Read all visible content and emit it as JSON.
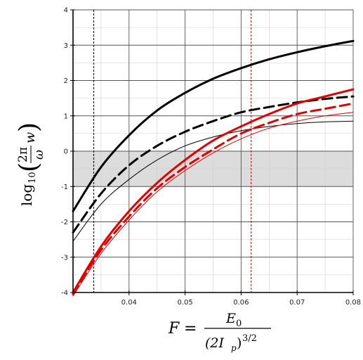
{
  "chart_data": {
    "type": "line",
    "title": "",
    "xlim": [
      0.03,
      0.08
    ],
    "ylim": [
      -4,
      4
    ],
    "x_ticks": [
      "0.04",
      "0.05",
      "0.06",
      "0.07",
      "0.08"
    ],
    "y_ticks": [
      "-4",
      "-3",
      "-2",
      "-1",
      "0",
      "1",
      "2",
      "3",
      "4"
    ],
    "xlabel": {
      "lhs": "F",
      "eq": "=",
      "numerator": "E",
      "numerator_sub": "0",
      "denominator": "(2I",
      "denominator_sub": "p",
      "denominator_close": ")",
      "denominator_exp": "3/2"
    },
    "ylabel": {
      "func": "log",
      "func_sub": "10",
      "open": "(",
      "numerator": "2π",
      "denominator": "ω",
      "factor": "w",
      "close": ")"
    },
    "grid": true,
    "shaded_band": {
      "y_from": -1,
      "y_to": 0,
      "color": "#dcdcdc"
    },
    "vertical_markers": [
      {
        "x": 0.0337,
        "color": "#000000",
        "style": "dashed"
      },
      {
        "x": 0.0618,
        "color": "#e00000",
        "style": "dashed"
      }
    ],
    "series": [
      {
        "color": "#000000",
        "style": "solid",
        "width": 3,
        "x": [
          0.03,
          0.035,
          0.04,
          0.045,
          0.05,
          0.055,
          0.06,
          0.065,
          0.07,
          0.075,
          0.08
        ],
        "y": [
          -1.7,
          -0.45,
          0.45,
          1.15,
          1.65,
          2.05,
          2.35,
          2.6,
          2.8,
          2.97,
          3.12
        ]
      },
      {
        "color": "#000000",
        "style": "dashed",
        "width": 3,
        "x": [
          0.03,
          0.035,
          0.04,
          0.045,
          0.05,
          0.055,
          0.06,
          0.065,
          0.07,
          0.075,
          0.08
        ],
        "y": [
          -2.3,
          -1.2,
          -0.4,
          0.15,
          0.55,
          0.85,
          1.1,
          1.25,
          1.38,
          1.48,
          1.55
        ]
      },
      {
        "color": "#000000",
        "style": "solid",
        "width": 1,
        "x": [
          0.03,
          0.035,
          0.04,
          0.045,
          0.05,
          0.055,
          0.06,
          0.065,
          0.07,
          0.075,
          0.08
        ],
        "y": [
          -2.55,
          -1.5,
          -0.8,
          -0.25,
          0.15,
          0.4,
          0.58,
          0.7,
          0.78,
          0.83,
          0.85
        ]
      },
      {
        "color": "#e00000",
        "style": "solid",
        "width": 3,
        "x": [
          0.03,
          0.035,
          0.04,
          0.045,
          0.05,
          0.055,
          0.06,
          0.065,
          0.07,
          0.075,
          0.08
        ],
        "y": [
          -4.0,
          -2.7,
          -1.7,
          -0.9,
          -0.25,
          0.3,
          0.7,
          1.05,
          1.35,
          1.55,
          1.75
        ]
      },
      {
        "color": "#e00000",
        "style": "dashed",
        "width": 3,
        "x": [
          0.03,
          0.035,
          0.04,
          0.045,
          0.05,
          0.055,
          0.06,
          0.065,
          0.07,
          0.075,
          0.08
        ],
        "y": [
          -4.05,
          -2.8,
          -1.85,
          -1.05,
          -0.45,
          0.05,
          0.5,
          0.8,
          1.05,
          1.2,
          1.35
        ]
      },
      {
        "color": "#e00000",
        "style": "solid",
        "width": 1,
        "x": [
          0.03,
          0.035,
          0.04,
          0.045,
          0.05,
          0.055,
          0.06,
          0.065,
          0.07,
          0.075,
          0.08
        ],
        "y": [
          -4.1,
          -2.9,
          -1.95,
          -1.15,
          -0.55,
          -0.05,
          0.35,
          0.65,
          0.85,
          1.0,
          1.1
        ]
      }
    ]
  }
}
